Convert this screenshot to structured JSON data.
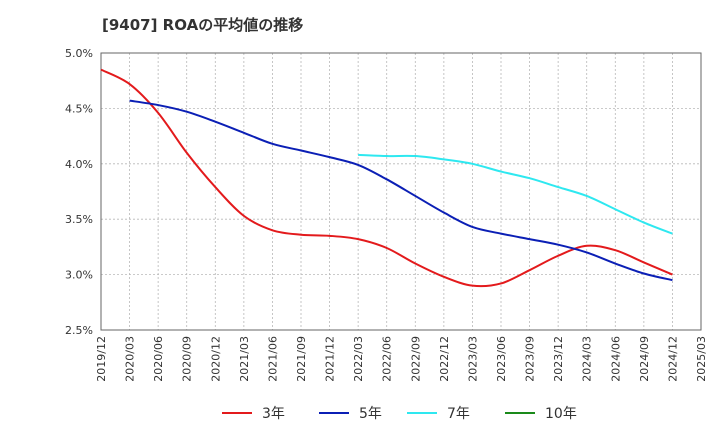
{
  "title": "[9407]  ROAの平均値の推移",
  "chart_data": {
    "type": "line",
    "title": "[9407]  ROAの平均値の推移",
    "x_tick_labels": [
      "2019/12",
      "2020/03",
      "2020/06",
      "2020/09",
      "2020/12",
      "2021/03",
      "2021/06",
      "2021/09",
      "2021/12",
      "2022/03",
      "2022/06",
      "2022/09",
      "2022/12",
      "2023/03",
      "2023/06",
      "2023/09",
      "2023/12",
      "2024/03",
      "2024/06",
      "2024/09",
      "2024/12",
      "2025/03"
    ],
    "y_ticks": [
      2.5,
      3.0,
      3.5,
      4.0,
      4.5,
      5.0
    ],
    "y_tick_labels": [
      "2.5%",
      "3.0%",
      "3.5%",
      "4.0%",
      "4.5%",
      "5.0%"
    ],
    "ylim": [
      2.5,
      5.0
    ],
    "grid": true,
    "legend_position": "bottom",
    "series": [
      {
        "name": "3年",
        "color": "#e31a1c",
        "x": [
          "2019/12",
          "2020/03",
          "2020/06",
          "2020/09",
          "2020/12",
          "2021/03",
          "2021/06",
          "2021/09",
          "2021/12",
          "2022/03",
          "2022/06",
          "2022/09",
          "2022/12",
          "2023/03",
          "2023/06",
          "2023/09",
          "2023/12",
          "2024/03",
          "2024/06",
          "2024/09",
          "2024/12"
        ],
        "values": [
          4.85,
          4.72,
          4.46,
          4.1,
          3.79,
          3.53,
          3.4,
          3.36,
          3.35,
          3.32,
          3.24,
          3.1,
          2.98,
          2.9,
          2.92,
          3.04,
          3.17,
          3.26,
          3.22,
          3.11,
          3.0
        ]
      },
      {
        "name": "5年",
        "color": "#0b1fb5",
        "x": [
          "2020/03",
          "2020/06",
          "2020/09",
          "2020/12",
          "2021/03",
          "2021/06",
          "2021/09",
          "2021/12",
          "2022/03",
          "2022/06",
          "2022/09",
          "2022/12",
          "2023/03",
          "2023/06",
          "2023/09",
          "2023/12",
          "2024/03",
          "2024/06",
          "2024/09",
          "2024/12"
        ],
        "values": [
          4.57,
          4.53,
          4.47,
          4.38,
          4.28,
          4.18,
          4.12,
          4.06,
          3.99,
          3.86,
          3.71,
          3.56,
          3.43,
          3.37,
          3.32,
          3.27,
          3.2,
          3.1,
          3.01,
          2.95
        ]
      },
      {
        "name": "7年",
        "color": "#2ee8f0",
        "x": [
          "2022/03",
          "2022/06",
          "2022/09",
          "2022/12",
          "2023/03",
          "2023/06",
          "2023/09",
          "2023/12",
          "2024/03",
          "2024/06",
          "2024/09",
          "2024/12"
        ],
        "values": [
          4.08,
          4.07,
          4.07,
          4.04,
          4.0,
          3.93,
          3.87,
          3.79,
          3.71,
          3.59,
          3.47,
          3.37
        ]
      },
      {
        "name": "10年",
        "color": "#1a8a1a",
        "x": [],
        "values": []
      }
    ]
  }
}
